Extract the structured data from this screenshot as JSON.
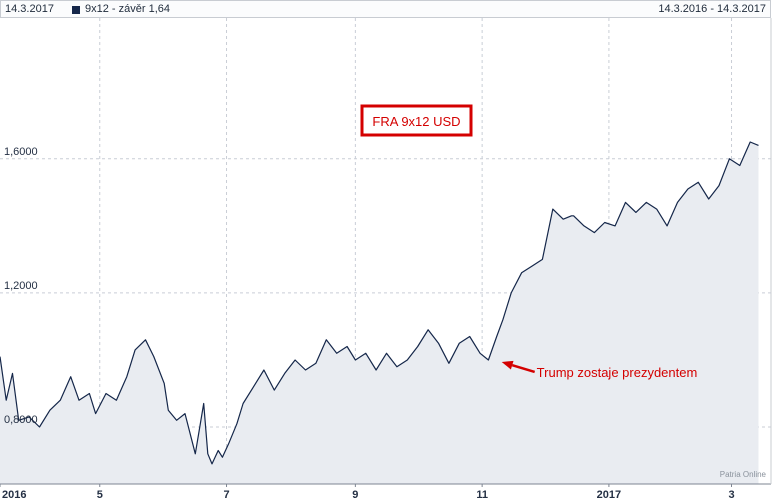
{
  "header": {
    "date": "14.3.2017",
    "series_label": "9x12 - závěr 1,64",
    "range": "14.3.2016 - 14.3.2017"
  },
  "colors": {
    "line": "#15274a",
    "fill": "#e9ecf1",
    "grid": "#c9ced6",
    "annotation": "#d40000"
  },
  "chart_data": {
    "type": "area",
    "title": "FRA 9x12 USD",
    "y_ticks": [
      "1,6000",
      "1,2000",
      "0,8000"
    ],
    "y_tick_values": [
      1.6,
      1.2,
      0.8
    ],
    "ylim": [
      0.63,
      2.02
    ],
    "x_ticks": [
      "2016",
      "5",
      "7",
      "9",
      "11",
      "2017",
      "3"
    ],
    "x_tick_dates": [
      "2016-03-14",
      "2016-05-01",
      "2016-07-01",
      "2016-09-01",
      "2016-11-01",
      "2017-01-01",
      "2017-03-01"
    ],
    "x_range": [
      "2016-03-14",
      "2017-03-20"
    ],
    "grid": "dashed vertical and horizontal",
    "series": [
      {
        "dates": [
          "2016-03-14",
          "2016-03-17",
          "2016-03-20",
          "2016-03-23",
          "2016-03-28",
          "2016-04-02",
          "2016-04-07",
          "2016-04-12",
          "2016-04-17",
          "2016-04-21",
          "2016-04-26",
          "2016-04-29",
          "2016-05-04",
          "2016-05-09",
          "2016-05-14",
          "2016-05-18",
          "2016-05-23",
          "2016-05-27",
          "2016-06-01",
          "2016-06-03",
          "2016-06-07",
          "2016-06-11",
          "2016-06-16",
          "2016-06-20",
          "2016-06-22",
          "2016-06-24",
          "2016-06-27",
          "2016-06-29",
          "2016-07-02",
          "2016-07-06",
          "2016-07-09",
          "2016-07-14",
          "2016-07-19",
          "2016-07-24",
          "2016-07-29",
          "2016-08-03",
          "2016-08-08",
          "2016-08-13",
          "2016-08-18",
          "2016-08-23",
          "2016-08-28",
          "2016-09-01",
          "2016-09-06",
          "2016-09-11",
          "2016-09-16",
          "2016-09-21",
          "2016-09-26",
          "2016-10-01",
          "2016-10-06",
          "2016-10-11",
          "2016-10-16",
          "2016-10-21",
          "2016-10-26",
          "2016-10-31",
          "2016-11-04",
          "2016-11-08",
          "2016-11-11",
          "2016-11-15",
          "2016-11-20",
          "2016-11-25",
          "2016-11-30",
          "2016-12-05",
          "2016-12-10",
          "2016-12-14",
          "2016-12-15",
          "2016-12-20",
          "2016-12-25",
          "2016-12-30",
          "2017-01-04",
          "2017-01-09",
          "2017-01-14",
          "2017-01-19",
          "2017-01-24",
          "2017-01-29",
          "2017-02-03",
          "2017-02-08",
          "2017-02-13",
          "2017-02-18",
          "2017-02-23",
          "2017-02-28",
          "2017-03-05",
          "2017-03-10",
          "2017-03-14"
        ],
        "values": [
          1.01,
          0.88,
          0.96,
          0.82,
          0.83,
          0.8,
          0.85,
          0.88,
          0.95,
          0.88,
          0.9,
          0.84,
          0.9,
          0.88,
          0.95,
          1.03,
          1.06,
          1.01,
          0.93,
          0.85,
          0.82,
          0.84,
          0.72,
          0.87,
          0.72,
          0.69,
          0.73,
          0.71,
          0.75,
          0.81,
          0.87,
          0.92,
          0.97,
          0.91,
          0.96,
          1.0,
          0.97,
          0.99,
          1.06,
          1.02,
          1.04,
          1.0,
          1.02,
          0.97,
          1.02,
          0.98,
          1.0,
          1.04,
          1.09,
          1.05,
          0.99,
          1.05,
          1.07,
          1.02,
          1.0,
          1.07,
          1.12,
          1.2,
          1.26,
          1.28,
          1.3,
          1.45,
          1.42,
          1.43,
          1.43,
          1.4,
          1.38,
          1.41,
          1.4,
          1.47,
          1.44,
          1.47,
          1.45,
          1.4,
          1.47,
          1.51,
          1.53,
          1.48,
          1.52,
          1.6,
          1.58,
          1.65,
          1.64
        ]
      }
    ],
    "annotation": {
      "text": "Trump zostaje prezydentem",
      "date": "2016-11-08",
      "value": 1.0
    },
    "watermark": "Patria Online"
  }
}
